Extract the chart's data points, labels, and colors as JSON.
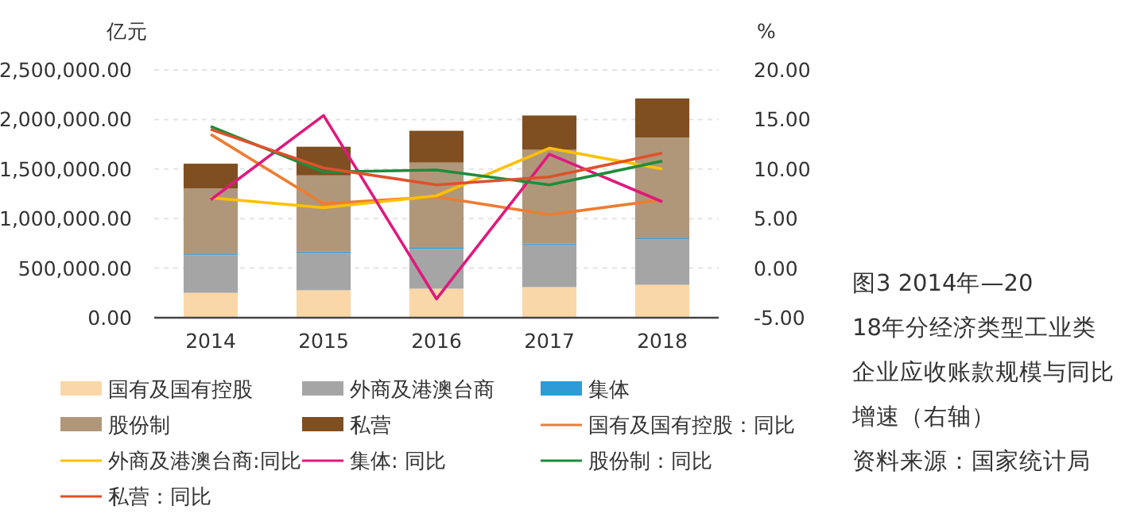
{
  "chart_data": {
    "type": "bar",
    "stacked": true,
    "title": "图3 2014年—2018年分经济类型工业类企业应收账款规模与同比增速（右轴）",
    "ylabel": "亿元",
    "y2label": "%",
    "annotations": [
      "资料来源：国家统计局"
    ],
    "categories": [
      "2014",
      "2015",
      "2016",
      "2017",
      "2018"
    ],
    "series": [
      {
        "name": "国有及国有控股",
        "color": "#fad7a8",
        "values": [
          251000,
          277000,
          293000,
          309000,
          332000
        ]
      },
      {
        "name": "外商及港澳台商",
        "color": "#a5a5a5",
        "values": [
          379000,
          380000,
          402000,
          429000,
          459000
        ]
      },
      {
        "name": "集体",
        "color": "#2e9bd6",
        "values": [
          10000,
          10000,
          10000,
          10000,
          10000
        ]
      },
      {
        "name": "股份制",
        "color": "#b0977a",
        "values": [
          663000,
          769000,
          860000,
          946000,
          1015000
        ]
      },
      {
        "name": "私营",
        "color": "#7f4f21",
        "values": [
          251000,
          289000,
          321000,
          346000,
          396000
        ]
      },
      {
        "name": "国有及国有控股：同比",
        "type": "line",
        "axis": "y2",
        "color": "#ed7d31",
        "values": [
          13.5,
          6.5,
          7.2,
          5.4,
          6.9
        ]
      },
      {
        "name": "外商及港澳台商:同比",
        "type": "line",
        "axis": "y2",
        "color": "#ffc000",
        "values": [
          7.1,
          6.1,
          7.3,
          12.1,
          10.0
        ]
      },
      {
        "name": "集体: 同比",
        "type": "line",
        "axis": "y2",
        "color": "#e0197d",
        "values": [
          6.9,
          15.4,
          -3.1,
          11.5,
          6.7
        ]
      },
      {
        "name": "股份制：同比",
        "type": "line",
        "axis": "y2",
        "color": "#1e8c3c",
        "values": [
          14.3,
          9.7,
          9.9,
          8.4,
          10.8
        ]
      },
      {
        "name": "私营：同比",
        "type": "line",
        "axis": "y2",
        "color": "#e0502b",
        "values": [
          14.0,
          10.1,
          8.4,
          9.2,
          11.6
        ]
      }
    ],
    "ylim": [
      0,
      2500000
    ],
    "yticks": [
      {
        "value": 0,
        "label": "0.00"
      },
      {
        "value": 500000,
        "label": "500,000.00"
      },
      {
        "value": 1000000,
        "label": "1,000,000.00"
      },
      {
        "value": 1500000,
        "label": "1,500,000.00"
      },
      {
        "value": 2000000,
        "label": "2,000,000.00"
      },
      {
        "value": 2500000,
        "label": "2,500,000.00"
      }
    ],
    "y2lim": [
      -5,
      20
    ],
    "y2ticks": [
      {
        "value": -5,
        "label": "-5.00"
      },
      {
        "value": 0,
        "label": "0.00"
      },
      {
        "value": 5,
        "label": "5.00"
      },
      {
        "value": 10,
        "label": "10.00"
      },
      {
        "value": 15,
        "label": "15.00"
      },
      {
        "value": 20,
        "label": "20.00"
      }
    ],
    "grid": "y",
    "legend": "bottom"
  }
}
